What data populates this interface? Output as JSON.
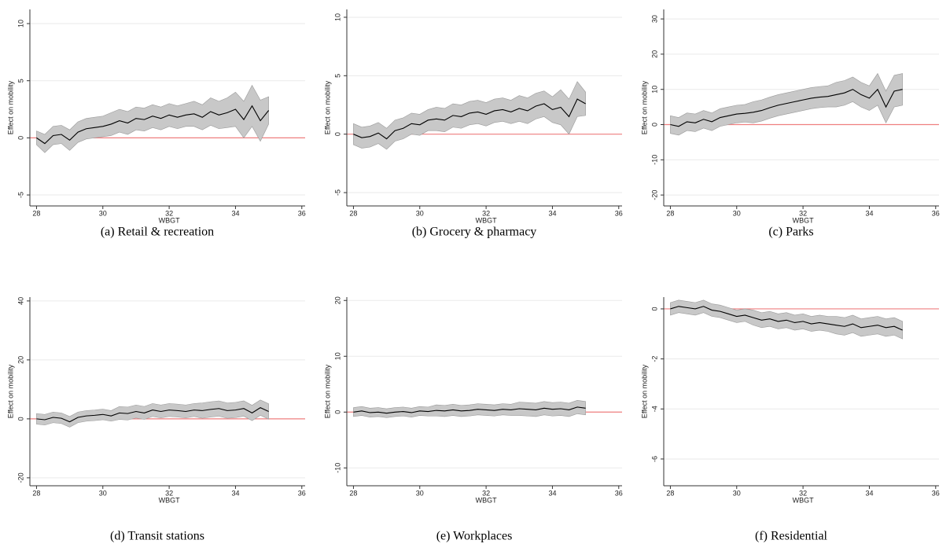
{
  "chart_data": [
    {
      "type": "line",
      "caption": "(a)  Retail & recreation",
      "xlabel": "WBGT",
      "ylabel": "Effect on mobility",
      "x": [
        28,
        28.25,
        28.5,
        28.75,
        29,
        29.25,
        29.5,
        29.75,
        30,
        30.25,
        30.5,
        30.75,
        31,
        31.25,
        31.5,
        31.75,
        32,
        32.25,
        32.5,
        32.75,
        33,
        33.25,
        33.5,
        33.75,
        34,
        34.25,
        34.5,
        34.75,
        35
      ],
      "series": [
        {
          "color": "#000000",
          "values": [
            0,
            -0.5,
            0.2,
            0.3,
            -0.2,
            0.5,
            0.8,
            0.9,
            1.0,
            1.2,
            1.5,
            1.3,
            1.7,
            1.6,
            1.9,
            1.7,
            2.0,
            1.8,
            2.0,
            2.1,
            1.8,
            2.3,
            2.0,
            2.2,
            2.5,
            1.6,
            2.8,
            1.5,
            2.4
          ]
        }
      ],
      "band": {
        "color": "#c8c8c8",
        "lower": [
          -0.6,
          -1.3,
          -0.6,
          -0.5,
          -1.1,
          -0.4,
          -0.1,
          0,
          0.1,
          0.2,
          0.5,
          0.3,
          0.7,
          0.6,
          0.9,
          0.7,
          1.0,
          0.8,
          1.0,
          1.0,
          0.7,
          1.1,
          0.8,
          0.9,
          1.0,
          0.0,
          1.0,
          -0.3,
          1.2
        ],
        "upper": [
          0.6,
          0.3,
          1.0,
          1.1,
          0.7,
          1.4,
          1.7,
          1.8,
          1.9,
          2.2,
          2.5,
          2.3,
          2.7,
          2.6,
          2.9,
          2.7,
          3.0,
          2.8,
          3.0,
          3.2,
          2.9,
          3.5,
          3.2,
          3.5,
          4.0,
          3.2,
          4.6,
          3.3,
          3.6
        ]
      },
      "hline": {
        "value": 0,
        "color": "#ef7f80"
      },
      "xlim": [
        27.8,
        36.1
      ],
      "xticks": [
        28,
        30,
        32,
        34,
        36
      ],
      "ylim": [
        -5.96,
        11.24
      ],
      "yticks": [
        -5,
        0,
        5,
        10
      ],
      "grid": true
    },
    {
      "type": "line",
      "caption": "(b)  Grocery & pharmacy",
      "xlabel": "WBGT",
      "ylabel": "Effect on mobility",
      "x": [
        28,
        28.25,
        28.5,
        28.75,
        29,
        29.25,
        29.5,
        29.75,
        30,
        30.25,
        30.5,
        30.75,
        31,
        31.25,
        31.5,
        31.75,
        32,
        32.25,
        32.5,
        32.75,
        33,
        33.25,
        33.5,
        33.75,
        34,
        34.25,
        34.5,
        34.75,
        35
      ],
      "series": [
        {
          "color": "#000000",
          "values": [
            0,
            -0.3,
            -0.2,
            0.1,
            -0.4,
            0.3,
            0.5,
            0.9,
            0.8,
            1.2,
            1.3,
            1.2,
            1.6,
            1.5,
            1.8,
            1.9,
            1.7,
            2.0,
            2.1,
            1.9,
            2.2,
            2.0,
            2.4,
            2.6,
            2.1,
            2.3,
            1.5,
            3.0,
            2.6
          ]
        }
      ],
      "band": {
        "color": "#c8c8c8",
        "lower": [
          -0.9,
          -1.2,
          -1.1,
          -0.8,
          -1.3,
          -0.6,
          -0.4,
          0.0,
          -0.1,
          0.3,
          0.3,
          0.2,
          0.6,
          0.5,
          0.8,
          0.9,
          0.7,
          1.0,
          1.1,
          0.9,
          1.1,
          0.9,
          1.3,
          1.5,
          1.0,
          0.8,
          0.0,
          1.5,
          1.6
        ],
        "upper": [
          0.9,
          0.6,
          0.7,
          1.0,
          0.5,
          1.2,
          1.4,
          1.8,
          1.7,
          2.1,
          2.3,
          2.2,
          2.6,
          2.5,
          2.8,
          2.9,
          2.7,
          3.0,
          3.1,
          2.9,
          3.3,
          3.1,
          3.5,
          3.7,
          3.2,
          3.8,
          3.0,
          4.5,
          3.6
        ]
      },
      "hline": {
        "value": 0,
        "color": "#ef7f80"
      },
      "xlim": [
        27.8,
        36.1
      ],
      "xticks": [
        28,
        30,
        32,
        34,
        36
      ],
      "ylim": [
        -6.14,
        10.67
      ],
      "yticks": [
        -5,
        0,
        5,
        10
      ],
      "grid": true
    },
    {
      "type": "line",
      "caption": "(c)  Parks",
      "xlabel": "WBGT",
      "ylabel": "Effect on mobility",
      "x": [
        28,
        28.25,
        28.5,
        28.75,
        29,
        29.25,
        29.5,
        29.75,
        30,
        30.25,
        30.5,
        30.75,
        31,
        31.25,
        31.5,
        31.75,
        32,
        32.25,
        32.5,
        32.75,
        33,
        33.25,
        33.5,
        33.75,
        34,
        34.25,
        34.5,
        34.75,
        35
      ],
      "series": [
        {
          "color": "#000000",
          "values": [
            0,
            -0.5,
            0.8,
            0.5,
            1.5,
            0.8,
            2,
            2.5,
            3,
            3.2,
            3.5,
            4,
            4.8,
            5.5,
            6,
            6.5,
            7,
            7.5,
            7.8,
            8,
            8.5,
            9,
            10,
            8.5,
            7.5,
            10,
            5,
            9.5,
            10
          ]
        }
      ],
      "band": {
        "color": "#c8c8c8",
        "lower": [
          -2.5,
          -3,
          -1.7,
          -2,
          -1,
          -1.7,
          -0.5,
          0,
          0.5,
          0.7,
          0.5,
          1,
          1.8,
          2.5,
          3,
          3.5,
          4,
          4.5,
          4.8,
          5,
          5,
          5.5,
          6.5,
          5,
          4,
          5.5,
          0.5,
          5,
          5.5
        ],
        "upper": [
          2.5,
          2,
          3.3,
          3,
          4,
          3.3,
          4.5,
          5,
          5.5,
          5.7,
          6.5,
          7,
          7.8,
          8.5,
          9,
          9.5,
          10,
          10.5,
          10.8,
          11,
          12,
          12.5,
          13.5,
          12,
          11,
          14.5,
          9.5,
          14,
          14.5
        ]
      },
      "hline": {
        "value": 0,
        "color": "#ef7f80"
      },
      "xlim": [
        27.8,
        36.1
      ],
      "xticks": [
        28,
        30,
        32,
        34,
        36
      ],
      "ylim": [
        -23.1,
        32.7
      ],
      "yticks": [
        -20,
        -10,
        0,
        10,
        20,
        30
      ],
      "grid": true
    },
    {
      "type": "line",
      "caption": "(d)  Transit stations",
      "xlabel": "WBGT",
      "ylabel": "Effect on mobility",
      "x": [
        28,
        28.25,
        28.5,
        28.75,
        29,
        29.25,
        29.5,
        29.75,
        30,
        30.25,
        30.5,
        30.75,
        31,
        31.25,
        31.5,
        31.75,
        32,
        32.25,
        32.5,
        32.75,
        33,
        33.25,
        33.5,
        33.75,
        34,
        34.25,
        34.5,
        34.75,
        35
      ],
      "series": [
        {
          "color": "#000000",
          "values": [
            0,
            -0.3,
            0.5,
            0.2,
            -1,
            0.5,
            1,
            1.2,
            1.5,
            1,
            2,
            1.8,
            2.5,
            2,
            3,
            2.5,
            3,
            2.8,
            2.5,
            3,
            2.8,
            3.2,
            3.5,
            2.8,
            3,
            3.5,
            2,
            3.8,
            2.5
          ]
        }
      ],
      "band": {
        "color": "#c8c8c8",
        "lower": [
          -1.8,
          -2.1,
          -1.3,
          -1.6,
          -2.8,
          -1.3,
          -0.8,
          -0.6,
          -0.3,
          -0.8,
          -0.2,
          -0.4,
          0.3,
          -0.2,
          0.8,
          0.3,
          0.8,
          0.6,
          0.3,
          0.8,
          0.2,
          0.6,
          0.9,
          0.2,
          0.4,
          0.9,
          -0.6,
          1.2,
          -0.1
        ],
        "upper": [
          1.8,
          1.5,
          2.3,
          2.0,
          0.8,
          2.3,
          2.8,
          3.0,
          3.3,
          2.8,
          4.2,
          4.0,
          4.7,
          4.2,
          5.2,
          4.7,
          5.2,
          5.0,
          4.7,
          5.2,
          5.4,
          5.8,
          6.1,
          5.4,
          5.6,
          6.1,
          4.6,
          6.4,
          5.1
        ]
      },
      "hline": {
        "value": 0,
        "color": "#ef7f80"
      },
      "xlim": [
        27.8,
        36.1
      ],
      "xticks": [
        28,
        30,
        32,
        34,
        36
      ],
      "ylim": [
        -22.7,
        41.3
      ],
      "yticks": [
        -20,
        0,
        20,
        40
      ],
      "grid": true
    },
    {
      "type": "line",
      "caption": "(e)  Workplaces",
      "xlabel": "WBGT",
      "ylabel": "Effect on mobility",
      "x": [
        28,
        28.25,
        28.5,
        28.75,
        29,
        29.25,
        29.5,
        29.75,
        30,
        30.25,
        30.5,
        30.75,
        31,
        31.25,
        31.5,
        31.75,
        32,
        32.25,
        32.5,
        32.75,
        33,
        33.25,
        33.5,
        33.75,
        34,
        34.25,
        34.5,
        34.75,
        35
      ],
      "series": [
        {
          "color": "#000000",
          "values": [
            0,
            0.2,
            -0.1,
            0,
            -0.2,
            0,
            0.1,
            -0.1,
            0.2,
            0.1,
            0.3,
            0.2,
            0.4,
            0.2,
            0.3,
            0.5,
            0.4,
            0.3,
            0.5,
            0.4,
            0.6,
            0.5,
            0.4,
            0.7,
            0.5,
            0.6,
            0.4,
            0.9,
            0.7
          ]
        }
      ],
      "band": {
        "color": "#c8c8c8",
        "lower": [
          -0.8,
          -0.6,
          -0.9,
          -0.8,
          -1.0,
          -0.8,
          -0.7,
          -0.9,
          -0.6,
          -0.7,
          -0.7,
          -0.8,
          -0.6,
          -0.8,
          -0.7,
          -0.5,
          -0.6,
          -0.7,
          -0.5,
          -0.6,
          -0.6,
          -0.7,
          -0.8,
          -0.5,
          -0.7,
          -0.6,
          -0.8,
          -0.3,
          -0.5
        ],
        "upper": [
          0.8,
          1.0,
          0.7,
          0.8,
          0.6,
          0.8,
          0.9,
          0.7,
          1.0,
          0.9,
          1.3,
          1.2,
          1.4,
          1.2,
          1.3,
          1.5,
          1.4,
          1.3,
          1.5,
          1.4,
          1.8,
          1.7,
          1.6,
          1.9,
          1.7,
          1.8,
          1.6,
          2.1,
          1.9
        ]
      },
      "hline": {
        "value": 0,
        "color": "#ef7f80"
      },
      "xlim": [
        27.8,
        36.1
      ],
      "xticks": [
        28,
        30,
        32,
        34,
        36
      ],
      "ylim": [
        -13.2,
        20.6
      ],
      "yticks": [
        -10,
        0,
        10,
        20
      ],
      "grid": true
    },
    {
      "type": "line",
      "caption": "(f)  Residential",
      "xlabel": "WBGT",
      "ylabel": "Effect on mobility",
      "x": [
        28,
        28.25,
        28.5,
        28.75,
        29,
        29.25,
        29.5,
        29.75,
        30,
        30.25,
        30.5,
        30.75,
        31,
        31.25,
        31.5,
        31.75,
        32,
        32.25,
        32.5,
        32.75,
        33,
        33.25,
        33.5,
        33.75,
        34,
        34.25,
        34.5,
        34.75,
        35
      ],
      "series": [
        {
          "color": "#000000",
          "values": [
            0,
            0.1,
            0.05,
            0,
            0.1,
            -0.05,
            -0.1,
            -0.2,
            -0.3,
            -0.25,
            -0.35,
            -0.45,
            -0.4,
            -0.5,
            -0.45,
            -0.55,
            -0.5,
            -0.6,
            -0.55,
            -0.6,
            -0.65,
            -0.7,
            -0.6,
            -0.75,
            -0.7,
            -0.65,
            -0.75,
            -0.7,
            -0.85
          ]
        }
      ],
      "band": {
        "color": "#c8c8c8",
        "lower": [
          -0.25,
          -0.15,
          -0.2,
          -0.25,
          -0.15,
          -0.3,
          -0.35,
          -0.45,
          -0.55,
          -0.5,
          -0.65,
          -0.75,
          -0.7,
          -0.8,
          -0.75,
          -0.85,
          -0.8,
          -0.9,
          -0.85,
          -0.9,
          -1.0,
          -1.05,
          -0.95,
          -1.1,
          -1.05,
          -1.0,
          -1.1,
          -1.05,
          -1.2
        ],
        "upper": [
          0.25,
          0.35,
          0.3,
          0.25,
          0.35,
          0.2,
          0.15,
          0.05,
          -0.05,
          0,
          -0.05,
          -0.15,
          -0.1,
          -0.2,
          -0.15,
          -0.25,
          -0.2,
          -0.3,
          -0.25,
          -0.3,
          -0.3,
          -0.35,
          -0.25,
          -0.4,
          -0.35,
          -0.3,
          -0.4,
          -0.35,
          -0.5
        ]
      },
      "hline": {
        "value": 0,
        "color": "#ef7f80"
      },
      "xlim": [
        27.8,
        36.1
      ],
      "xticks": [
        28,
        30,
        32,
        34,
        36
      ],
      "ylim": [
        -7.07,
        0.47
      ],
      "yticks": [
        0,
        -2,
        -4,
        -6
      ],
      "grid": true
    }
  ]
}
